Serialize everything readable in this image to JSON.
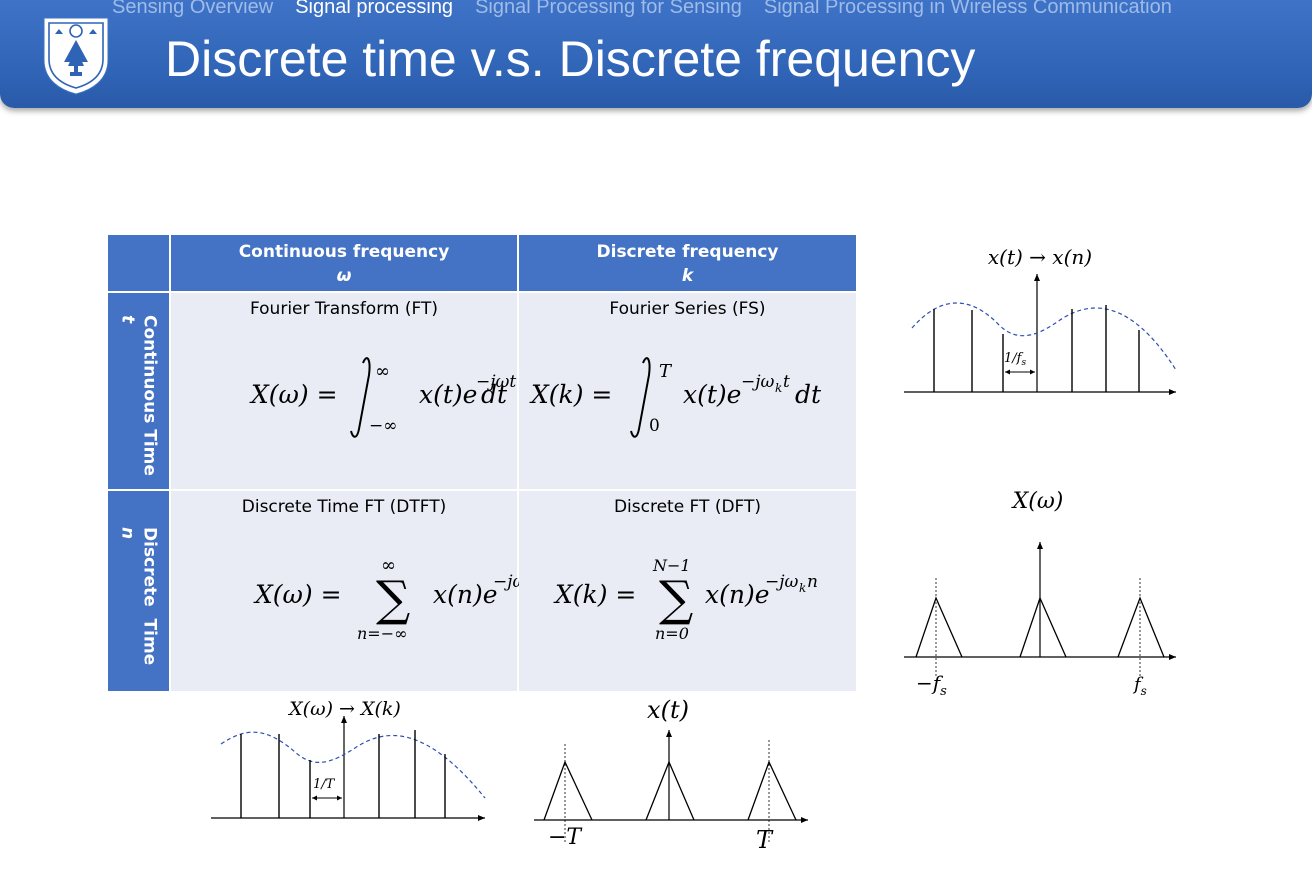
{
  "nav": {
    "items": [
      "Sensing Overview",
      "Signal processing",
      "Signal Processing for Sensing",
      "Signal Processing in Wireless Communication"
    ],
    "active_index": 1
  },
  "slide": {
    "title": "Discrete time v.s. Discrete frequency"
  },
  "table": {
    "col_headers": [
      {
        "line1": "Continuous frequency",
        "line2": "ω"
      },
      {
        "line1": "Discrete frequency",
        "line2": "k"
      }
    ],
    "row_headers": [
      {
        "label": "Continuous Time",
        "var": "t"
      },
      {
        "label": "Discrete  Time",
        "var": "n"
      }
    ],
    "cells": [
      {
        "caption": "Fourier Transform (FT)"
      },
      {
        "caption": "Fourier Series (FS)"
      },
      {
        "caption": "Discrete Time FT (DTFT)"
      },
      {
        "caption": "Discrete FT (DFT)"
      }
    ]
  },
  "figures": {
    "sampling": {
      "title": "x(t) → x(n)",
      "interval": "1/f",
      "interval_sub": "s"
    },
    "spectrum": {
      "title": "X(ω)",
      "neg_label": "−f",
      "pos_label": "f",
      "sub": "s"
    },
    "freq_sampling": {
      "title": "X(ω) → X(k)",
      "interval": "1/T"
    },
    "periodic": {
      "title": "x(t)",
      "neg_label": "−T",
      "pos_label": "T"
    }
  },
  "colors": {
    "header_blue": "#2f63b5",
    "table_blue": "#4472c4",
    "cell_bg": "#e9ebf5",
    "dash": "#2c4fb0"
  }
}
